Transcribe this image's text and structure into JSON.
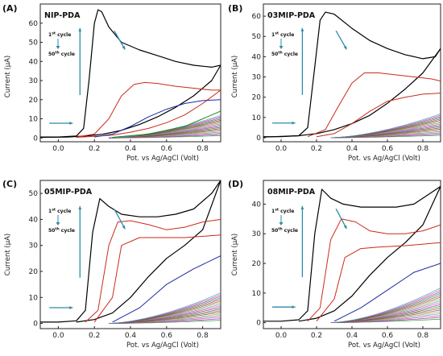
{
  "figure": {
    "xlabel": "Pot. vs Ag/AgCl (Volt)",
    "ylabel": "Current (μA)",
    "cycle_first": {
      "num": "1",
      "sup": "st",
      "rest": " cycle"
    },
    "cycle_last": {
      "num": "50",
      "sup": "th",
      "rest": " cycle"
    },
    "colors": {
      "first_cycle": "#000000",
      "second_cycle": "#cc2a1a",
      "third_cycle": "#1a2aa0",
      "arrow": "#2e8aa8",
      "others": [
        "#1a8a1a",
        "#8a2ab0",
        "#e0409a",
        "#2aa0b0",
        "#d88a20",
        "#555555",
        "#a03030"
      ]
    }
  },
  "chart_data": [
    {
      "type": "line",
      "panel": "(A)",
      "title": "NIP-PDA",
      "xlabel": "Pot. vs Ag/AgCl (Volt)",
      "ylabel": "Current (μA)",
      "xlim": [
        -0.1,
        0.9
      ],
      "ylim": [
        -2,
        70
      ],
      "xticks": [
        "0.0",
        "0.2",
        "0.4",
        "0.6",
        "0.8"
      ],
      "yticks": [
        "0",
        "10",
        "20",
        "30",
        "40",
        "50",
        "60"
      ],
      "series": [
        {
          "role": "cycle 1 forward",
          "x": [
            -0.1,
            0.0,
            0.1,
            0.14,
            0.17,
            0.2,
            0.22,
            0.24,
            0.28,
            0.35,
            0.45,
            0.55,
            0.65,
            0.75,
            0.85,
            0.9
          ],
          "y": [
            0.5,
            0.5,
            1,
            5,
            30,
            60,
            67,
            66,
            58,
            50,
            46,
            43,
            40,
            38,
            37,
            38
          ]
        },
        {
          "role": "cycle 1 reverse",
          "x": [
            0.9,
            0.85,
            0.75,
            0.65,
            0.55,
            0.45,
            0.35,
            0.25,
            0.15,
            0.05,
            -0.1
          ],
          "y": [
            38,
            30,
            22,
            16,
            11,
            7,
            4,
            2,
            1,
            0.5,
            0.3
          ]
        },
        {
          "role": "cycle 2 forward",
          "x": [
            0.1,
            0.2,
            0.28,
            0.35,
            0.42,
            0.48,
            0.55,
            0.65,
            0.75,
            0.85,
            0.9
          ],
          "y": [
            0.5,
            2,
            10,
            22,
            28,
            29,
            28.5,
            27,
            26,
            25,
            25
          ]
        },
        {
          "role": "cycle 2 reverse",
          "x": [
            0.9,
            0.8,
            0.7,
            0.6,
            0.5,
            0.4,
            0.3,
            0.2,
            0.1
          ],
          "y": [
            25,
            18,
            12,
            8,
            5,
            3,
            1.5,
            0.8,
            0.3
          ]
        },
        {
          "role": "cycle 3",
          "x": [
            0.2,
            0.3,
            0.4,
            0.5,
            0.6,
            0.7,
            0.8,
            0.9
          ],
          "y": [
            0.5,
            2,
            6,
            11,
            15,
            18,
            19.5,
            20
          ]
        },
        {
          "role": "later cycles",
          "x": [
            0.3,
            0.5,
            0.7,
            0.9
          ],
          "y": [
            0.3,
            2,
            6,
            14
          ]
        }
      ],
      "annotations": [
        "1st cycle",
        "50th cycle"
      ]
    },
    {
      "type": "line",
      "panel": "(B)",
      "title": "03MIP-PDA",
      "xlabel": "Pot. vs Ag/AgCl (Volt)",
      "ylabel": "Current (μA)",
      "xlim": [
        -0.1,
        0.9
      ],
      "ylim": [
        -2,
        66
      ],
      "xticks": [
        "0.0",
        "0.2",
        "0.4",
        "0.6",
        "0.8"
      ],
      "yticks": [
        "0",
        "10",
        "20",
        "30",
        "40",
        "50",
        "60"
      ],
      "series": [
        {
          "role": "cycle 1 forward",
          "x": [
            -0.1,
            0.0,
            0.1,
            0.15,
            0.19,
            0.22,
            0.25,
            0.3,
            0.4,
            0.5,
            0.6,
            0.7,
            0.8,
            0.87,
            0.9
          ],
          "y": [
            0.5,
            0.5,
            1,
            5,
            35,
            58,
            62,
            61,
            54,
            48,
            44,
            41,
            39,
            40,
            44
          ]
        },
        {
          "role": "cycle 1 reverse",
          "x": [
            0.9,
            0.8,
            0.7,
            0.6,
            0.5,
            0.4,
            0.3,
            0.2,
            0.1,
            -0.1
          ],
          "y": [
            44,
            32,
            24,
            17,
            11,
            7,
            4,
            2,
            1,
            0.3
          ]
        },
        {
          "role": "cycle 2 forward",
          "x": [
            0.15,
            0.25,
            0.32,
            0.4,
            0.47,
            0.55,
            0.65,
            0.75,
            0.85,
            0.9
          ],
          "y": [
            0.5,
            4,
            15,
            27,
            32,
            32,
            31,
            30,
            29,
            28
          ]
        },
        {
          "role": "cycle 3",
          "x": [
            0.2,
            0.3,
            0.4,
            0.5,
            0.6,
            0.7,
            0.8,
            0.9
          ],
          "y": [
            0.5,
            2,
            7,
            13,
            18,
            20,
            21.5,
            22
          ]
        }
      ],
      "annotations": [
        "1st cycle",
        "50th cycle"
      ]
    },
    {
      "type": "line",
      "panel": "(C)",
      "title": "05MIP-PDA",
      "xlabel": "Pot. vs Ag/AgCl (Volt)",
      "ylabel": "Current (μA)",
      "xlim": [
        -0.1,
        0.9
      ],
      "ylim": [
        -2,
        55
      ],
      "xticks": [
        "0.0",
        "0.2",
        "0.4",
        "0.6",
        "0.8"
      ],
      "yticks": [
        "0",
        "10",
        "20",
        "30",
        "40",
        "50"
      ],
      "series": [
        {
          "role": "cycle 1 forward",
          "x": [
            -0.1,
            0.0,
            0.1,
            0.15,
            0.19,
            0.23,
            0.28,
            0.35,
            0.45,
            0.55,
            0.65,
            0.75,
            0.85,
            0.9
          ],
          "y": [
            0.5,
            0.5,
            1,
            5,
            35,
            48,
            45,
            42,
            41,
            41,
            42,
            44,
            50,
            55
          ]
        },
        {
          "role": "cycle 1 reverse",
          "x": [
            0.9,
            0.8,
            0.7,
            0.6,
            0.5,
            0.4,
            0.3,
            0.2,
            0.1
          ],
          "y": [
            55,
            36,
            30,
            25,
            18,
            10,
            4,
            1.5,
            0.5
          ]
        },
        {
          "role": "cycle 2 forward",
          "x": [
            0.15,
            0.22,
            0.28,
            0.33,
            0.4,
            0.5,
            0.6,
            0.7,
            0.8,
            0.9
          ],
          "y": [
            0.5,
            5,
            30,
            39,
            39.5,
            38,
            36,
            37,
            39,
            40
          ]
        },
        {
          "role": "cycle 3",
          "x": [
            0.2,
            0.3,
            0.35,
            0.45,
            0.55,
            0.7,
            0.9
          ],
          "y": [
            0.5,
            10,
            30,
            33,
            33,
            33,
            34
          ]
        },
        {
          "role": "cycle 4",
          "x": [
            0.3,
            0.45,
            0.6,
            0.75,
            0.9
          ],
          "y": [
            0.5,
            6,
            15,
            21,
            26
          ]
        }
      ],
      "annotations": [
        "1st cycle",
        "50th cycle"
      ]
    },
    {
      "type": "line",
      "panel": "(D)",
      "title": "08MIP-PDA",
      "xlabel": "Pot. vs Ag/AgCl (Volt)",
      "ylabel": "Current (μA)",
      "xlim": [
        -0.1,
        0.9
      ],
      "ylim": [
        -2,
        48
      ],
      "xticks": [
        "0.0",
        "0.2",
        "0.4",
        "0.6",
        "0.8"
      ],
      "yticks": [
        "0",
        "10",
        "20",
        "30",
        "40"
      ],
      "series": [
        {
          "role": "cycle 1 forward",
          "x": [
            -0.1,
            0.0,
            0.1,
            0.15,
            0.19,
            0.23,
            0.28,
            0.35,
            0.45,
            0.55,
            0.65,
            0.75,
            0.85,
            0.9
          ],
          "y": [
            0.5,
            0.5,
            1,
            4,
            30,
            45,
            42,
            40,
            39,
            39,
            39,
            40,
            44,
            46
          ]
        },
        {
          "role": "cycle 1 reverse",
          "x": [
            0.9,
            0.8,
            0.7,
            0.6,
            0.5,
            0.4,
            0.3,
            0.2,
            0.1
          ],
          "y": [
            46,
            33,
            27,
            22,
            16,
            9,
            4,
            1.5,
            0.5
          ]
        },
        {
          "role": "cycle 2 forward",
          "x": [
            0.15,
            0.22,
            0.28,
            0.34,
            0.42,
            0.5,
            0.6,
            0.7,
            0.8,
            0.9
          ],
          "y": [
            0.5,
            5,
            28,
            35,
            34,
            31,
            30,
            30,
            31,
            33
          ]
        },
        {
          "role": "cycle 3",
          "x": [
            0.2,
            0.3,
            0.36,
            0.45,
            0.55,
            0.7,
            0.9
          ],
          "y": [
            0.5,
            8,
            22,
            25,
            25.5,
            26,
            27
          ]
        },
        {
          "role": "cycle 4",
          "x": [
            0.3,
            0.45,
            0.6,
            0.75,
            0.9
          ],
          "y": [
            0.5,
            5,
            11,
            17,
            20
          ]
        }
      ],
      "annotations": [
        "1st cycle",
        "50th cycle"
      ]
    }
  ]
}
